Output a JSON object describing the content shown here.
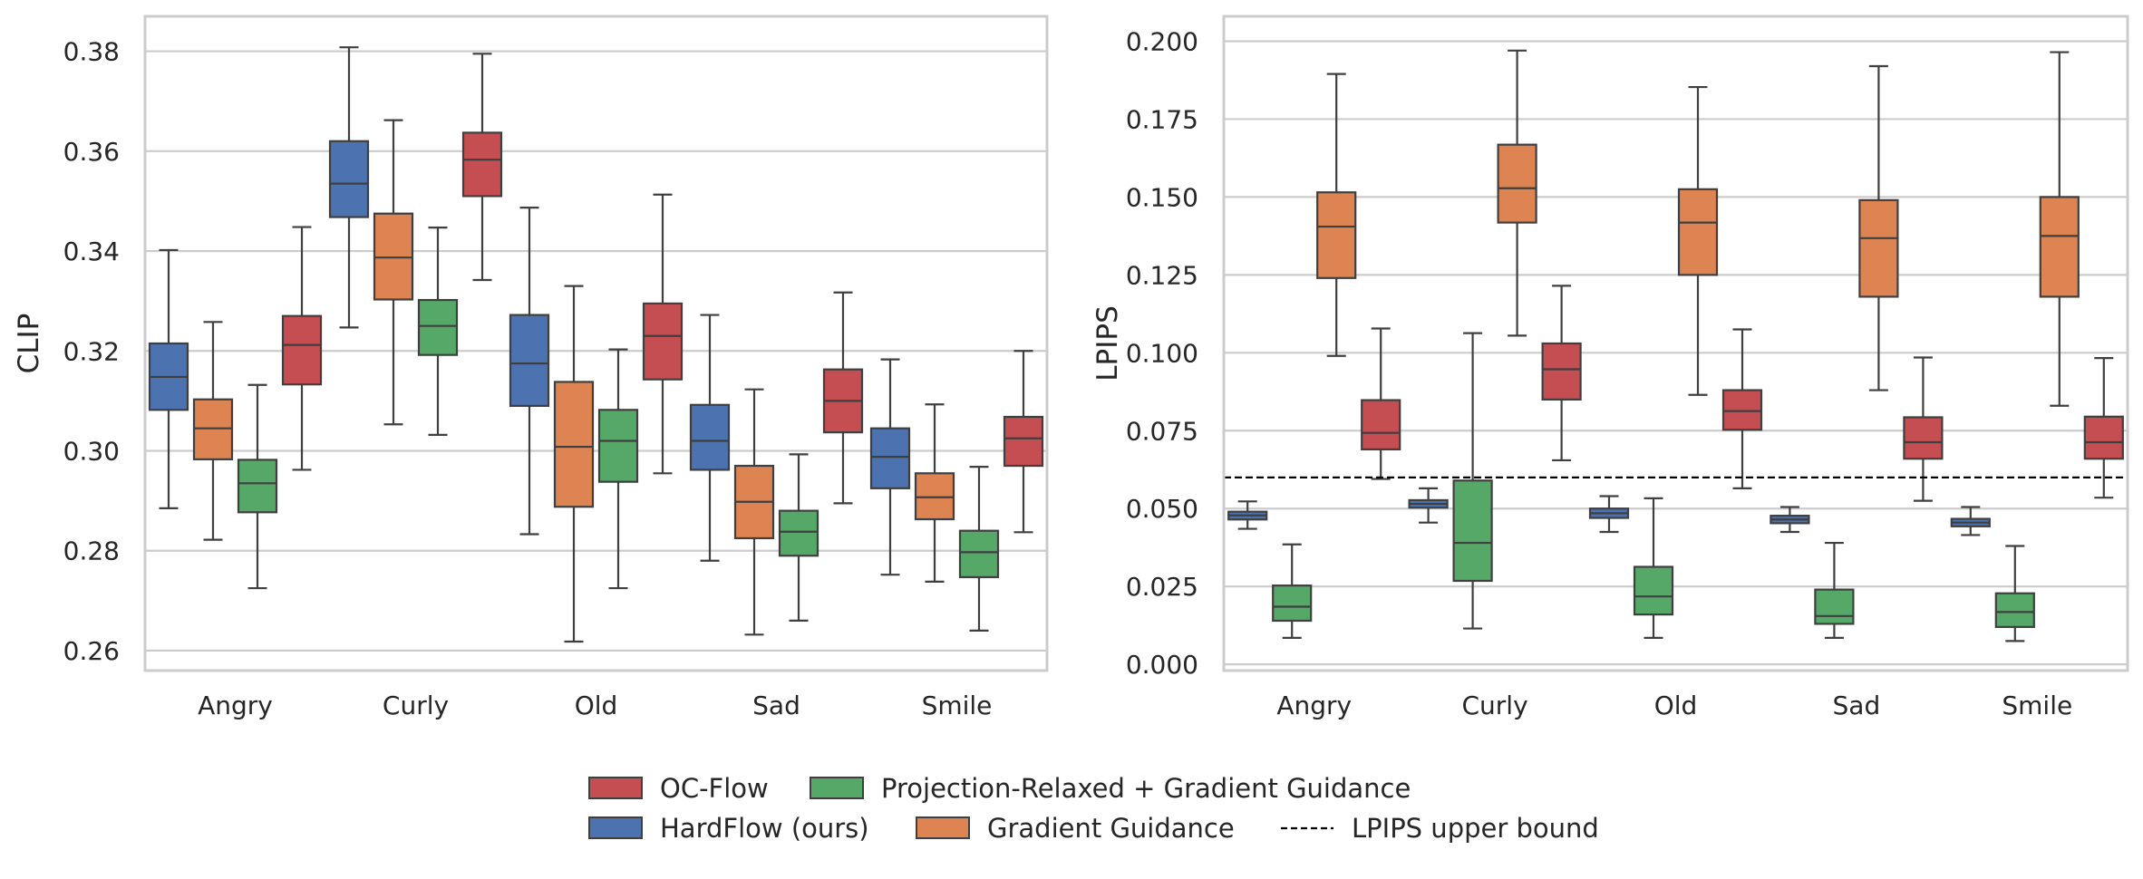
{
  "chart_data": [
    {
      "type": "box",
      "title": "",
      "xlabel": "",
      "ylabel": "CLIP",
      "ylim": [
        0.256,
        0.387
      ],
      "yticks": [
        0.26,
        0.28,
        0.3,
        0.32,
        0.34,
        0.36,
        0.38
      ],
      "ytick_labels": [
        "0.26",
        "0.28",
        "0.30",
        "0.32",
        "0.34",
        "0.36",
        "0.38"
      ],
      "categories": [
        "Angry",
        "Curly",
        "Old",
        "Sad",
        "Smile"
      ],
      "series": [
        {
          "name": "HardFlow (ours)",
          "color": "#4c72b0",
          "boxes": [
            {
              "whislo": 0.2885,
              "q1": 0.3082,
              "med": 0.3148,
              "q3": 0.3215,
              "whishi": 0.3402
            },
            {
              "whislo": 0.3247,
              "q1": 0.3468,
              "med": 0.3535,
              "q3": 0.362,
              "whishi": 0.3808
            },
            {
              "whislo": 0.2833,
              "q1": 0.309,
              "med": 0.3175,
              "q3": 0.3272,
              "whishi": 0.3487
            },
            {
              "whislo": 0.278,
              "q1": 0.2962,
              "med": 0.302,
              "q3": 0.3092,
              "whishi": 0.3272
            },
            {
              "whislo": 0.2752,
              "q1": 0.2925,
              "med": 0.2988,
              "q3": 0.3045,
              "whishi": 0.3183
            }
          ]
        },
        {
          "name": "Gradient Guidance",
          "color": "#dd8452",
          "boxes": [
            {
              "whislo": 0.2822,
              "q1": 0.2983,
              "med": 0.3045,
              "q3": 0.3103,
              "whishi": 0.3258
            },
            {
              "whislo": 0.3053,
              "q1": 0.3303,
              "med": 0.3387,
              "q3": 0.3475,
              "whishi": 0.3662
            },
            {
              "whislo": 0.2618,
              "q1": 0.2888,
              "med": 0.3008,
              "q3": 0.3138,
              "whishi": 0.333
            },
            {
              "whislo": 0.2632,
              "q1": 0.2825,
              "med": 0.2898,
              "q3": 0.297,
              "whishi": 0.3123
            },
            {
              "whislo": 0.2738,
              "q1": 0.2863,
              "med": 0.2907,
              "q3": 0.2955,
              "whishi": 0.3093
            }
          ]
        },
        {
          "name": "Projection-Relaxed + Gradient Guidance",
          "color": "#55a868",
          "boxes": [
            {
              "whislo": 0.2725,
              "q1": 0.2877,
              "med": 0.2935,
              "q3": 0.2982,
              "whishi": 0.3132
            },
            {
              "whislo": 0.3032,
              "q1": 0.3192,
              "med": 0.325,
              "q3": 0.3302,
              "whishi": 0.3447
            },
            {
              "whislo": 0.2725,
              "q1": 0.2938,
              "med": 0.302,
              "q3": 0.3082,
              "whishi": 0.3203
            },
            {
              "whislo": 0.266,
              "q1": 0.279,
              "med": 0.2838,
              "q3": 0.288,
              "whishi": 0.2993
            },
            {
              "whislo": 0.264,
              "q1": 0.2747,
              "med": 0.2797,
              "q3": 0.284,
              "whishi": 0.2968
            }
          ]
        },
        {
          "name": "OC-Flow",
          "color": "#c44e52",
          "boxes": [
            {
              "whislo": 0.2962,
              "q1": 0.3133,
              "med": 0.3212,
              "q3": 0.327,
              "whishi": 0.3448
            },
            {
              "whislo": 0.3342,
              "q1": 0.351,
              "med": 0.3583,
              "q3": 0.3637,
              "whishi": 0.3795
            },
            {
              "whislo": 0.2955,
              "q1": 0.3143,
              "med": 0.323,
              "q3": 0.3295,
              "whishi": 0.3513
            },
            {
              "whislo": 0.2895,
              "q1": 0.3037,
              "med": 0.31,
              "q3": 0.3163,
              "whishi": 0.3317
            },
            {
              "whislo": 0.2837,
              "q1": 0.297,
              "med": 0.3025,
              "q3": 0.3068,
              "whishi": 0.32
            }
          ]
        }
      ]
    },
    {
      "type": "box",
      "title": "",
      "xlabel": "",
      "ylabel": "LPIPS",
      "ylim": [
        -0.002,
        0.208
      ],
      "yticks": [
        0.0,
        0.025,
        0.05,
        0.075,
        0.1,
        0.125,
        0.15,
        0.175,
        0.2
      ],
      "ytick_labels": [
        "0.000",
        "0.025",
        "0.050",
        "0.075",
        "0.100",
        "0.125",
        "0.150",
        "0.175",
        "0.200"
      ],
      "categories": [
        "Angry",
        "Curly",
        "Old",
        "Sad",
        "Smile"
      ],
      "reference_line": {
        "y": 0.06,
        "style": "dashed",
        "label": "LPIPS upper bound"
      },
      "series": [
        {
          "name": "HardFlow (ours)",
          "color": "#4c72b0",
          "boxes": [
            {
              "whislo": 0.0435,
              "q1": 0.0465,
              "med": 0.0478,
              "q3": 0.049,
              "whishi": 0.0523
            },
            {
              "whislo": 0.0455,
              "q1": 0.0503,
              "med": 0.0515,
              "q3": 0.0527,
              "whishi": 0.0565
            },
            {
              "whislo": 0.0425,
              "q1": 0.047,
              "med": 0.0485,
              "q3": 0.05,
              "whishi": 0.054
            },
            {
              "whislo": 0.0425,
              "q1": 0.0453,
              "med": 0.0465,
              "q3": 0.0477,
              "whishi": 0.0505
            },
            {
              "whislo": 0.0415,
              "q1": 0.0443,
              "med": 0.0455,
              "q3": 0.0467,
              "whishi": 0.0505
            }
          ]
        },
        {
          "name": "Projection-Relaxed + Gradient Guidance",
          "color": "#55a868",
          "boxes": [
            {
              "whislo": 0.0085,
              "q1": 0.014,
              "med": 0.0185,
              "q3": 0.0253,
              "whishi": 0.0385
            },
            {
              "whislo": 0.0115,
              "q1": 0.0268,
              "med": 0.039,
              "q3": 0.059,
              "whishi": 0.1063
            },
            {
              "whislo": 0.0085,
              "q1": 0.016,
              "med": 0.0218,
              "q3": 0.0313,
              "whishi": 0.0533
            },
            {
              "whislo": 0.0085,
              "q1": 0.013,
              "med": 0.0155,
              "q3": 0.024,
              "whishi": 0.039
            },
            {
              "whislo": 0.0075,
              "q1": 0.012,
              "med": 0.0168,
              "q3": 0.0228,
              "whishi": 0.038
            }
          ]
        },
        {
          "name": "Gradient Guidance",
          "color": "#dd8452",
          "boxes": [
            {
              "whislo": 0.099,
              "q1": 0.124,
              "med": 0.1405,
              "q3": 0.1515,
              "whishi": 0.1895
            },
            {
              "whislo": 0.1055,
              "q1": 0.1418,
              "med": 0.1528,
              "q3": 0.1668,
              "whishi": 0.197
            },
            {
              "whislo": 0.0865,
              "q1": 0.125,
              "med": 0.1418,
              "q3": 0.1525,
              "whishi": 0.1853
            },
            {
              "whislo": 0.088,
              "q1": 0.118,
              "med": 0.1368,
              "q3": 0.149,
              "whishi": 0.192
            },
            {
              "whislo": 0.083,
              "q1": 0.118,
              "med": 0.1375,
              "q3": 0.15,
              "whishi": 0.1965
            }
          ]
        },
        {
          "name": "OC-Flow",
          "color": "#c44e52",
          "boxes": [
            {
              "whislo": 0.0595,
              "q1": 0.069,
              "med": 0.0743,
              "q3": 0.0848,
              "whishi": 0.1078
            },
            {
              "whislo": 0.0655,
              "q1": 0.085,
              "med": 0.0947,
              "q3": 0.103,
              "whishi": 0.1215
            },
            {
              "whislo": 0.0565,
              "q1": 0.0753,
              "med": 0.0813,
              "q3": 0.088,
              "whishi": 0.1075
            },
            {
              "whislo": 0.0525,
              "q1": 0.066,
              "med": 0.0713,
              "q3": 0.0793,
              "whishi": 0.0985
            },
            {
              "whislo": 0.0535,
              "q1": 0.066,
              "med": 0.0713,
              "q3": 0.0795,
              "whishi": 0.0983
            }
          ]
        }
      ]
    }
  ],
  "legend": {
    "row1": [
      {
        "label": "OC-Flow",
        "color": "#c44e52",
        "kind": "patch"
      },
      {
        "label": "Projection-Relaxed + Gradient Guidance",
        "color": "#55a868",
        "kind": "patch"
      }
    ],
    "row2": [
      {
        "label": "HardFlow (ours)",
        "color": "#4c72b0",
        "kind": "patch"
      },
      {
        "label": "Gradient Guidance",
        "color": "#dd8452",
        "kind": "patch"
      },
      {
        "label": "LPIPS upper bound",
        "color": "#000000",
        "kind": "dashed-line"
      }
    ]
  },
  "colors": {
    "grid": "#cccccc",
    "spine": "#cccccc",
    "box_edge": "#3f3f3f",
    "text": "#262626"
  }
}
